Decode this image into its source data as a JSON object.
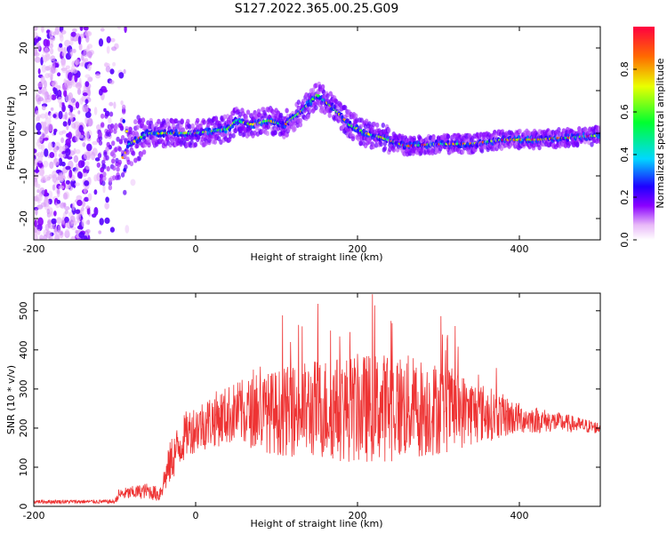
{
  "title": "S127.2022.365.00.25.G09",
  "chart_data": [
    {
      "type": "heatmap",
      "xlabel": "Height of straight line (km)",
      "ylabel": "Frequency (Hz)",
      "xlim": [
        -200,
        500
      ],
      "ylim": [
        -25,
        25
      ],
      "xticks": [
        "-200",
        "0",
        "200",
        "400"
      ],
      "yticks": [
        "-20",
        "-10",
        "0",
        "10",
        "20"
      ],
      "colorbar": {
        "label": "Normalized spectral amplitude",
        "range": [
          0,
          1
        ],
        "ticks": [
          "0.0",
          "0.2",
          "0.4",
          "0.6",
          "0.8"
        ]
      },
      "ridge": {
        "x": [
          -85,
          -60,
          -40,
          -20,
          0,
          20,
          40,
          50,
          70,
          90,
          110,
          130,
          150,
          170,
          190,
          210,
          230,
          260,
          300,
          340,
          380,
          420,
          460,
          500
        ],
        "y": [
          -3,
          0,
          0,
          0,
          0,
          0.5,
          1,
          3,
          2,
          3,
          2,
          5,
          9,
          6,
          2,
          0,
          -1,
          -3,
          -2.5,
          -2.5,
          -1.5,
          -1.5,
          -1,
          -0.5
        ]
      },
      "grid": false
    },
    {
      "type": "line",
      "xlabel": "Height of straight line (km)",
      "ylabel": "SNR (10 * v/v)",
      "xlim": [
        -200,
        500
      ],
      "ylim": [
        0,
        545
      ],
      "xticks": [
        "-200",
        "0",
        "200",
        "400"
      ],
      "yticks": [
        "0",
        "100",
        "200",
        "300",
        "400",
        "500"
      ],
      "color": "#ee3333",
      "envelope": {
        "x": [
          -200,
          -100,
          -95,
          -60,
          -45,
          -30,
          -10,
          20,
          50,
          100,
          150,
          200,
          250,
          300,
          350,
          400,
          450,
          500
        ],
        "mean": [
          12,
          12,
          30,
          40,
          30,
          120,
          190,
          220,
          240,
          240,
          250,
          250,
          255,
          250,
          240,
          225,
          215,
          200
        ],
        "spread": [
          5,
          5,
          15,
          20,
          20,
          60,
          60,
          70,
          80,
          110,
          130,
          140,
          140,
          120,
          80,
          40,
          25,
          15
        ]
      },
      "grid": false
    }
  ]
}
